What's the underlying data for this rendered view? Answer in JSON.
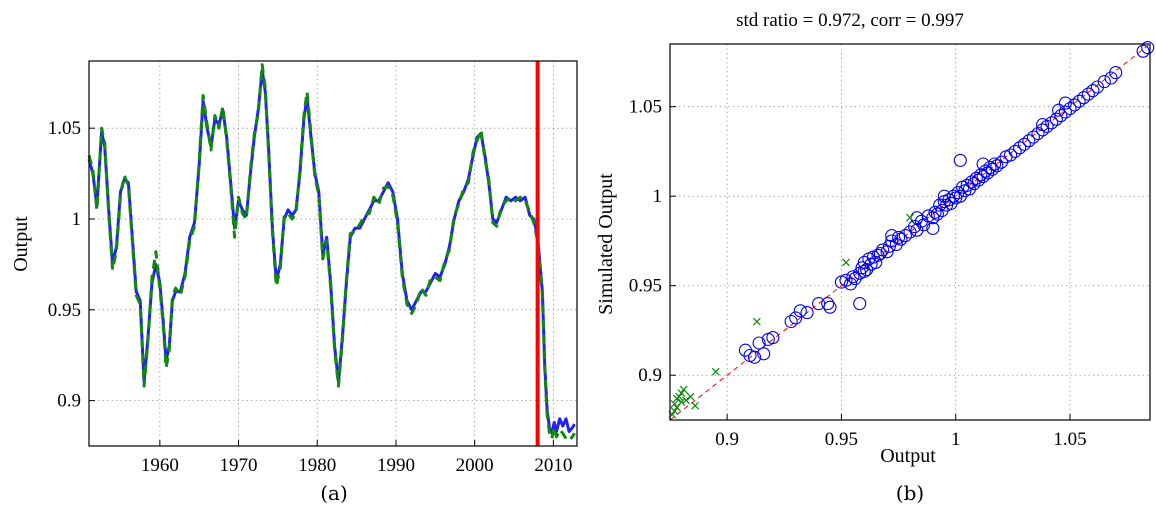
{
  "chart_data": [
    {
      "type": "line",
      "caption": "(a)",
      "title": "",
      "xlabel": "",
      "ylabel": "Output",
      "xlim": [
        1951,
        2013
      ],
      "ylim": [
        0.875,
        1.087
      ],
      "xticks": [
        1960,
        1970,
        1980,
        1990,
        2000,
        2010
      ],
      "yticks": [
        0.9,
        0.95,
        1,
        1.05
      ],
      "ytick_labels": [
        "0.9",
        "0.95",
        "1",
        "1.05"
      ],
      "grid": true,
      "vline": {
        "x": 2008,
        "color": "#ff0000"
      },
      "series": [
        {
          "color": "#2222ee",
          "style": "solid",
          "x": [
            1951,
            1951.5,
            1952,
            1952.6,
            1953,
            1953.5,
            1954,
            1954.5,
            1955,
            1955.5,
            1956,
            1956.5,
            1957,
            1957.5,
            1958,
            1958.5,
            1959,
            1959.5,
            1960,
            1960.4,
            1960.8,
            1961.2,
            1961.6,
            1962,
            1962.6,
            1963.2,
            1963.8,
            1964.4,
            1965,
            1965.5,
            1966,
            1966.5,
            1967,
            1967.5,
            1968,
            1968.5,
            1969,
            1969.5,
            1970,
            1970.5,
            1971,
            1971.5,
            1972,
            1972.5,
            1973,
            1973.4,
            1973.8,
            1974.3,
            1974.8,
            1975.3,
            1975.8,
            1976.3,
            1976.8,
            1977.3,
            1977.8,
            1978.3,
            1978.7,
            1979.2,
            1979.7,
            1980.2,
            1980.7,
            1981.2,
            1981.7,
            1982.2,
            1982.7,
            1983.2,
            1983.7,
            1984.2,
            1984.8,
            1985.4,
            1986,
            1986.6,
            1987.2,
            1987.8,
            1988.4,
            1989,
            1989.6,
            1990.2,
            1990.8,
            1991.4,
            1992,
            1992.6,
            1993.2,
            1993.8,
            1994.4,
            1995,
            1995.6,
            1996.2,
            1996.8,
            1997.4,
            1998,
            1998.6,
            1999.2,
            1999.8,
            2000.3,
            2000.8,
            2001.3,
            2001.8,
            2002.3,
            2002.8,
            2003.4,
            2004,
            2004.6,
            2005.2,
            2005.8,
            2006.4,
            2007,
            2007.5,
            2008,
            2008.3,
            2008.6,
            2008.9,
            2009.2,
            2009.5,
            2009.8,
            2010.1,
            2010.4,
            2010.8,
            2011.2,
            2011.6,
            2012,
            2012.4,
            2012.7
          ],
          "y": [
            1.033,
            1.025,
            1.007,
            1.048,
            1.04,
            1.005,
            0.975,
            0.985,
            1.015,
            1.022,
            1.02,
            0.99,
            0.96,
            0.955,
            0.91,
            0.935,
            0.965,
            0.975,
            0.965,
            0.945,
            0.922,
            0.93,
            0.955,
            0.96,
            0.96,
            0.97,
            0.99,
            0.998,
            1.03,
            1.065,
            1.05,
            1.04,
            1.055,
            1.052,
            1.06,
            1.045,
            1.02,
            0.995,
            1.01,
            1.005,
            1.002,
            1.025,
            1.045,
            1.06,
            1.082,
            1.07,
            1.04,
            0.995,
            0.966,
            0.975,
            1.0,
            1.005,
            1.002,
            1.005,
            1.025,
            1.055,
            1.067,
            1.045,
            1.025,
            1.015,
            0.98,
            0.99,
            0.965,
            0.93,
            0.91,
            0.935,
            0.965,
            0.99,
            0.995,
            0.995,
            1.0,
            1.005,
            1.01,
            1.01,
            1.015,
            1.02,
            1.015,
            1.0,
            0.97,
            0.955,
            0.95,
            0.955,
            0.96,
            0.96,
            0.965,
            0.97,
            0.968,
            0.975,
            0.985,
            1.0,
            1.01,
            1.015,
            1.022,
            1.035,
            1.045,
            1.047,
            1.035,
            1.02,
            1.0,
            0.998,
            1.005,
            1.012,
            1.01,
            1.012,
            1.01,
            1.012,
            1.002,
            1.0,
            0.99,
            0.975,
            0.96,
            0.92,
            0.895,
            0.885,
            0.882,
            0.888,
            0.883,
            0.89,
            0.886,
            0.89,
            0.883,
            0.885,
            0.887
          ]
        },
        {
          "color": "#118811",
          "style": "dashed",
          "x": [
            1951,
            1951.5,
            1952,
            1952.6,
            1953,
            1953.5,
            1954,
            1954.5,
            1955,
            1955.5,
            1956,
            1956.5,
            1957,
            1957.5,
            1958,
            1958.5,
            1959,
            1959.5,
            1960,
            1960.4,
            1960.8,
            1961.2,
            1961.6,
            1962,
            1962.6,
            1963.2,
            1963.8,
            1964.4,
            1965,
            1965.5,
            1966,
            1966.5,
            1967,
            1967.5,
            1968,
            1968.5,
            1969,
            1969.5,
            1970,
            1970.5,
            1971,
            1971.5,
            1972,
            1972.5,
            1973,
            1973.4,
            1973.8,
            1974.3,
            1974.8,
            1975.3,
            1975.8,
            1976.3,
            1976.8,
            1977.3,
            1977.8,
            1978.3,
            1978.7,
            1979.2,
            1979.7,
            1980.2,
            1980.7,
            1981.2,
            1981.7,
            1982.2,
            1982.7,
            1983.2,
            1983.7,
            1984.2,
            1984.8,
            1985.4,
            1986,
            1986.6,
            1987.2,
            1987.8,
            1988.4,
            1989,
            1989.6,
            1990.2,
            1990.8,
            1991.4,
            1992,
            1992.6,
            1993.2,
            1993.8,
            1994.4,
            1995,
            1995.6,
            1996.2,
            1996.8,
            1997.4,
            1998,
            1998.6,
            1999.2,
            1999.8,
            2000.3,
            2000.8,
            2001.3,
            2001.8,
            2002.3,
            2002.8,
            2003.4,
            2004,
            2004.6,
            2005.2,
            2005.8,
            2006.4,
            2007,
            2007.5,
            2008,
            2008.3,
            2008.6,
            2008.9,
            2009.2,
            2009.5,
            2009.8,
            2010.1,
            2010.4,
            2010.8,
            2011.2,
            2011.6,
            2012,
            2012.4,
            2012.7
          ],
          "y": [
            1.035,
            1.027,
            1.005,
            1.05,
            1.042,
            1.003,
            0.972,
            0.983,
            1.013,
            1.024,
            1.018,
            0.988,
            0.958,
            0.953,
            0.908,
            0.933,
            0.968,
            0.982,
            0.962,
            0.943,
            0.918,
            0.928,
            0.957,
            0.962,
            0.958,
            0.968,
            0.988,
            0.996,
            1.032,
            1.068,
            1.052,
            1.038,
            1.057,
            1.05,
            1.062,
            1.043,
            1.018,
            0.99,
            1.012,
            1.003,
            1.0,
            1.027,
            1.047,
            1.058,
            1.085,
            1.072,
            1.038,
            0.993,
            0.963,
            0.973,
            1.002,
            1.003,
            1.0,
            1.003,
            1.027,
            1.057,
            1.07,
            1.047,
            1.023,
            1.013,
            0.978,
            0.988,
            0.963,
            0.928,
            0.908,
            0.933,
            0.967,
            0.992,
            0.993,
            0.997,
            1.002,
            1.003,
            1.012,
            1.008,
            1.017,
            1.018,
            1.013,
            0.998,
            0.968,
            0.953,
            0.948,
            0.953,
            0.962,
            0.958,
            0.967,
            0.968,
            0.966,
            0.977,
            0.983,
            1.002,
            1.008,
            1.017,
            1.02,
            1.037,
            1.043,
            1.049,
            1.033,
            1.022,
            0.998,
            0.996,
            1.007,
            1.01,
            1.012,
            1.01,
            1.012,
            1.01,
            1.004,
            0.998,
            0.988,
            0.973,
            0.958,
            0.918,
            0.892,
            0.882,
            0.879,
            0.885,
            0.88,
            0.884,
            0.882,
            0.879,
            0.878,
            0.88,
            0.882
          ]
        }
      ]
    },
    {
      "type": "scatter",
      "caption": "(b)",
      "title": "std ratio  = 0.972, corr = 0.997",
      "xlabel": "Output",
      "ylabel": "Simulated Output",
      "xlim": [
        0.875,
        1.085
      ],
      "ylim": [
        0.875,
        1.085
      ],
      "xticks": [
        0.9,
        0.95,
        1,
        1.05
      ],
      "yticks": [
        0.9,
        0.95,
        1,
        1.05
      ],
      "tick_labels": [
        "0.9",
        "0.95",
        "1",
        "1.05"
      ],
      "grid": true,
      "reference_line": {
        "from": [
          0.875,
          0.875
        ],
        "to": [
          1.085,
          1.085
        ],
        "color": "#ff0000",
        "style": "dashed"
      },
      "series": [
        {
          "marker": "circle",
          "color": "#0000ee",
          "x": [
            0.908,
            0.91,
            0.912,
            0.914,
            0.916,
            0.918,
            0.92,
            0.928,
            0.93,
            0.932,
            0.935,
            0.94,
            0.944,
            0.945,
            0.95,
            0.952,
            0.954,
            0.955,
            0.956,
            0.958,
            0.959,
            0.96,
            0.961,
            0.962,
            0.963,
            0.964,
            0.965,
            0.966,
            0.967,
            0.968,
            0.97,
            0.971,
            0.972,
            0.974,
            0.975,
            0.976,
            0.978,
            0.98,
            0.982,
            0.983,
            0.985,
            0.986,
            0.988,
            0.99,
            0.991,
            0.992,
            0.993,
            0.994,
            0.995,
            0.996,
            0.997,
            0.998,
            0.999,
            1.0,
            1.001,
            1.002,
            1.003,
            1.004,
            1.005,
            1.006,
            1.007,
            1.008,
            1.009,
            1.01,
            1.011,
            1.012,
            1.013,
            1.014,
            1.015,
            1.016,
            1.017,
            1.018,
            1.02,
            1.022,
            1.024,
            1.026,
            1.028,
            1.03,
            1.032,
            1.034,
            1.036,
            1.038,
            1.04,
            1.042,
            1.044,
            1.046,
            1.048,
            1.05,
            1.052,
            1.054,
            1.056,
            1.058,
            1.06,
            1.062,
            1.065,
            1.068,
            1.07,
            1.082,
            1.084,
            0.958,
            0.96,
            1.002,
            1.012,
            0.99,
            0.983,
            0.972,
            0.995,
            1.048,
            1.045,
            1.038
          ],
          "y": [
            0.914,
            0.911,
            0.91,
            0.918,
            0.912,
            0.92,
            0.921,
            0.93,
            0.932,
            0.936,
            0.935,
            0.94,
            0.94,
            0.938,
            0.952,
            0.953,
            0.951,
            0.955,
            0.954,
            0.957,
            0.96,
            0.963,
            0.959,
            0.965,
            0.962,
            0.966,
            0.963,
            0.967,
            0.968,
            0.97,
            0.969,
            0.972,
            0.975,
            0.973,
            0.977,
            0.976,
            0.978,
            0.98,
            0.983,
            0.981,
            0.986,
            0.984,
            0.989,
            0.988,
            0.991,
            0.99,
            0.995,
            0.992,
            0.997,
            0.995,
            0.998,
            0.996,
            1.0,
            0.999,
            1.002,
            1.0,
            1.005,
            1.003,
            1.006,
            1.004,
            1.008,
            1.007,
            1.01,
            1.009,
            1.012,
            1.011,
            1.014,
            1.013,
            1.016,
            1.015,
            1.018,
            1.017,
            1.019,
            1.022,
            1.023,
            1.025,
            1.027,
            1.029,
            1.031,
            1.033,
            1.035,
            1.037,
            1.039,
            1.041,
            1.043,
            1.045,
            1.047,
            1.049,
            1.051,
            1.053,
            1.055,
            1.057,
            1.059,
            1.061,
            1.064,
            1.066,
            1.069,
            1.081,
            1.083,
            0.94,
            0.958,
            1.02,
            1.018,
            0.982,
            0.988,
            0.978,
            1.0,
            1.052,
            1.048,
            1.04
          ]
        },
        {
          "marker": "x",
          "color": "#118811",
          "x": [
            0.876,
            0.877,
            0.877,
            0.878,
            0.878,
            0.879,
            0.88,
            0.88,
            0.881,
            0.882,
            0.884,
            0.886,
            0.895,
            0.913,
            0.952,
            0.98
          ],
          "y": [
            0.878,
            0.88,
            0.884,
            0.882,
            0.887,
            0.888,
            0.885,
            0.89,
            0.892,
            0.886,
            0.888,
            0.883,
            0.902,
            0.93,
            0.963,
            0.988
          ]
        }
      ]
    }
  ]
}
